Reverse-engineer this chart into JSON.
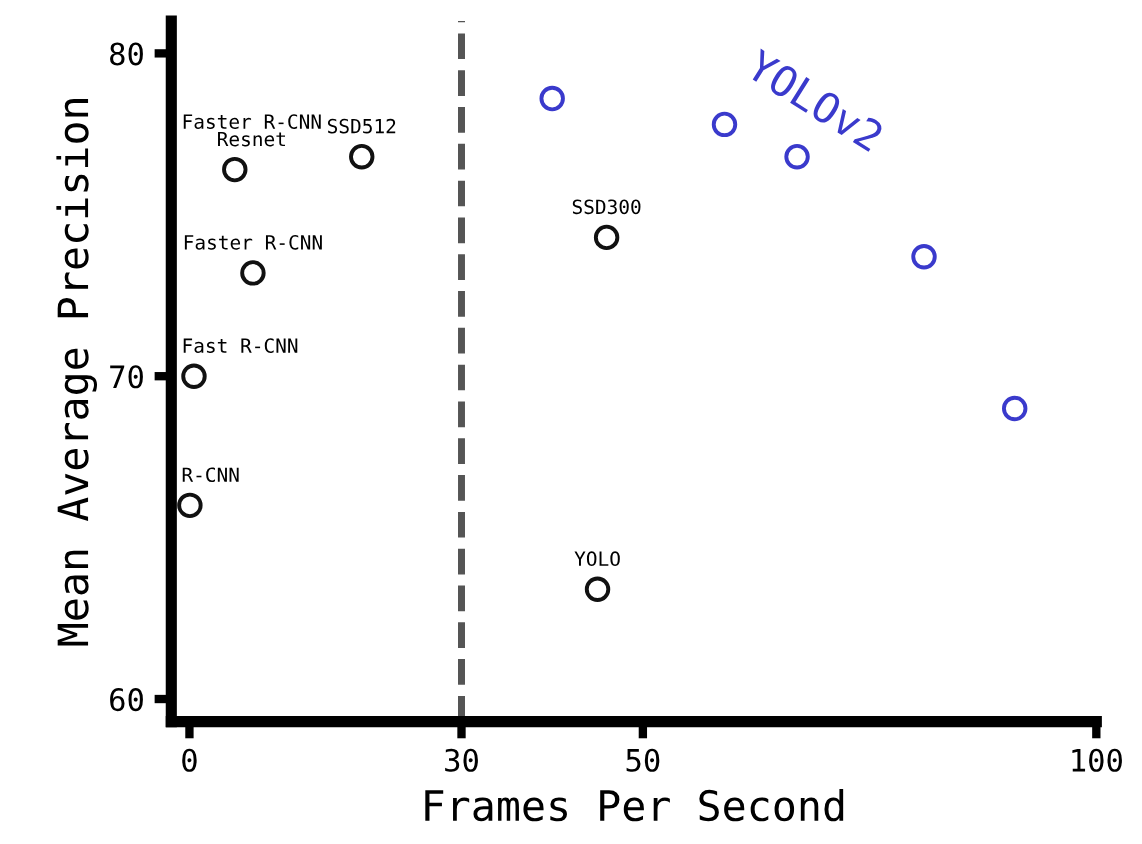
{
  "chart_data": {
    "type": "scatter",
    "xlabel": "Frames Per Second",
    "ylabel": "Mean Average Precision",
    "xlim": [
      -2,
      100
    ],
    "ylim": [
      59.3,
      81
    ],
    "xticks": [
      0,
      30,
      50,
      100
    ],
    "yticks": [
      60,
      70,
      80
    ],
    "marker": "circle",
    "grid": false,
    "legend": false,
    "series": [
      {
        "color": "#111111",
        "x": [
          0.05,
          0.5,
          7,
          5,
          19,
          46,
          45
        ],
        "values": [
          66.0,
          70.0,
          73.2,
          76.4,
          76.8,
          74.3,
          63.4
        ]
      },
      {
        "name": "YOLOv2",
        "color": "#3a3acc",
        "x": [
          40,
          59,
          67,
          81,
          91
        ],
        "values": [
          78.6,
          77.8,
          76.8,
          73.7,
          69.0
        ]
      }
    ],
    "ref_lines": [
      {
        "axis": "x",
        "value": 30,
        "color": "#555555",
        "line_style": "dashed"
      }
    ],
    "annotations": [
      {
        "text": "R-CNN",
        "x": 0.05,
        "y": 66.0
      },
      {
        "text": "Fast R-CNN",
        "x": 0.5,
        "y": 70.0
      },
      {
        "text": "Faster R-CNN",
        "x": 7,
        "y": 73.2
      },
      {
        "text": "Faster R-CNN\nResnet",
        "x": 5,
        "y": 76.4
      },
      {
        "text": "SSD512",
        "x": 19,
        "y": 76.8
      },
      {
        "text": "SSD300",
        "x": 46,
        "y": 74.3
      },
      {
        "text": "YOLO",
        "x": 45,
        "y": 63.4
      }
    ]
  }
}
